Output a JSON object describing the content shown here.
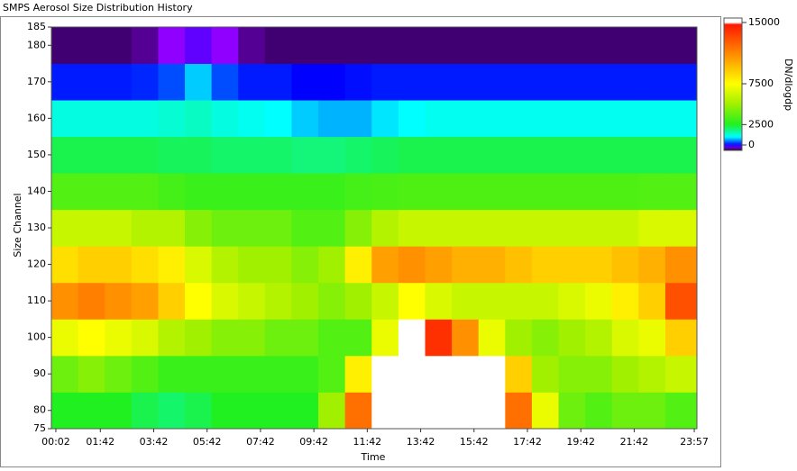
{
  "chart_data": {
    "type": "heatmap",
    "title": "SMPS Aerosol Size Distribution History",
    "xlabel": "Time",
    "ylabel": "Size Channel",
    "xlim": [
      -8,
      1443
    ],
    "xticks": [
      {
        "value": 2,
        "label": "00:02"
      },
      {
        "value": 102,
        "label": "01:42"
      },
      {
        "value": 222,
        "label": "03:42"
      },
      {
        "value": 342,
        "label": "05:42"
      },
      {
        "value": 462,
        "label": "07:42"
      },
      {
        "value": 582,
        "label": "09:42"
      },
      {
        "value": 702,
        "label": "11:42"
      },
      {
        "value": 822,
        "label": "13:42"
      },
      {
        "value": 942,
        "label": "15:42"
      },
      {
        "value": 1062,
        "label": "17:42"
      },
      {
        "value": 1182,
        "label": "19:42"
      },
      {
        "value": 1302,
        "label": "21:42"
      },
      {
        "value": 1437,
        "label": "23:57"
      }
    ],
    "ylim": [
      75,
      185
    ],
    "yticks": [
      75,
      80,
      90,
      100,
      110,
      120,
      130,
      140,
      150,
      160,
      170,
      180,
      185
    ],
    "xbins": [
      -8,
      52,
      112,
      172,
      232,
      292,
      352,
      412,
      472,
      532,
      592,
      652,
      712,
      772,
      832,
      892,
      952,
      1012,
      1072,
      1132,
      1192,
      1252,
      1312,
      1372,
      1443
    ],
    "ybins": [
      75,
      85,
      95,
      105,
      115,
      125,
      135,
      145,
      155,
      165,
      175,
      185
    ],
    "z": [
      [
        2500,
        2500,
        2500,
        2200,
        2000,
        2200,
        2500,
        2500,
        2500,
        2500,
        5000,
        12000,
        16000,
        16000,
        16000,
        16000,
        16000,
        12000,
        7000,
        4000,
        3500,
        4000,
        4000,
        3500
      ],
      [
        4000,
        4500,
        4000,
        3500,
        3000,
        3000,
        3000,
        3000,
        3000,
        3000,
        3500,
        8000,
        16000,
        16000,
        16000,
        16000,
        16000,
        9000,
        5000,
        4500,
        4500,
        5000,
        5500,
        6000
      ],
      [
        7000,
        7500,
        7000,
        6500,
        5500,
        5000,
        4500,
        4500,
        4000,
        4000,
        3500,
        3500,
        7000,
        16000,
        14000,
        11000,
        7000,
        5000,
        4500,
        5000,
        5500,
        6500,
        7000,
        9000
      ],
      [
        11000,
        11500,
        11000,
        10500,
        9000,
        7500,
        6500,
        6000,
        5500,
        5000,
        4500,
        5000,
        6000,
        7500,
        6500,
        6000,
        6000,
        6000,
        6000,
        6500,
        7000,
        8000,
        9000,
        13000
      ],
      [
        8500,
        9000,
        9000,
        8500,
        8000,
        6500,
        5500,
        5000,
        5000,
        4500,
        5000,
        8000,
        10500,
        11000,
        10500,
        10000,
        10000,
        9500,
        9000,
        9000,
        9000,
        9500,
        10000,
        11000
      ],
      [
        6000,
        6000,
        6000,
        5500,
        5500,
        4500,
        4000,
        4000,
        4000,
        3500,
        3500,
        4500,
        5500,
        6000,
        6000,
        6000,
        6000,
        6000,
        6000,
        6000,
        6000,
        6000,
        6500,
        6500
      ],
      [
        3500,
        3500,
        3500,
        3500,
        3200,
        3000,
        3000,
        3000,
        3000,
        3000,
        3000,
        3200,
        3300,
        3400,
        3400,
        3400,
        3400,
        3400,
        3400,
        3400,
        3400,
        3400,
        3500,
        3500
      ],
      [
        2200,
        2200,
        2200,
        2200,
        2100,
        2100,
        2000,
        2000,
        2000,
        1900,
        1900,
        2000,
        2100,
        2200,
        2200,
        2200,
        2200,
        2200,
        2200,
        2200,
        2200,
        2200,
        2200,
        2200
      ],
      [
        1200,
        1200,
        1200,
        1200,
        1300,
        1400,
        1200,
        1100,
        1000,
        800,
        700,
        700,
        900,
        1000,
        1100,
        1100,
        1100,
        1100,
        1100,
        1100,
        1100,
        1100,
        1100,
        1100
      ],
      [
        100,
        100,
        100,
        150,
        300,
        800,
        300,
        100,
        100,
        0,
        0,
        50,
        100,
        100,
        100,
        100,
        100,
        100,
        100,
        100,
        100,
        100,
        100,
        100
      ],
      [
        -500,
        -500,
        -500,
        -450,
        -300,
        -200,
        -300,
        -450,
        -500,
        -500,
        -500,
        -500,
        -500,
        -500,
        -500,
        -500,
        -500,
        -500,
        -500,
        -500,
        -500,
        -500,
        -500,
        -500
      ]
    ],
    "colorbar": {
      "label": "DN/dlogdp",
      "zlim": [
        -660,
        15550
      ],
      "ticks": [
        0,
        2500,
        7500,
        15000
      ]
    },
    "colorscale": [
      [
        -660,
        "#000000"
      ],
      [
        -300,
        "#9000ff"
      ],
      [
        0,
        "#0000ff"
      ],
      [
        1000,
        "#00ffff"
      ],
      [
        2500,
        "#20f020"
      ],
      [
        5000,
        "#a0f000"
      ],
      [
        7500,
        "#ffff00"
      ],
      [
        11000,
        "#ff9000"
      ],
      [
        15000,
        "#ff1000"
      ]
    ],
    "over_color": "#ffffff"
  }
}
